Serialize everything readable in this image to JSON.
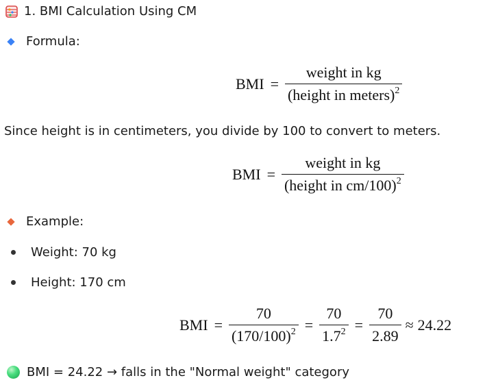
{
  "heading": {
    "icon": "abacus-icon",
    "text": "1. BMI Calculation Using CM"
  },
  "formula_section": {
    "icon": "blue-diamond-icon",
    "icon_color": "#3b82f6",
    "label": "Formula:"
  },
  "formula_1": {
    "lhs": "BMI",
    "eq": "=",
    "numerator": "weight in kg",
    "denominator": "(height in meters)",
    "exponent": "2"
  },
  "explanation": "Since height is in centimeters, you divide by 100 to convert to meters.",
  "formula_2": {
    "lhs": "BMI",
    "eq": "=",
    "numerator": "weight in kg",
    "denominator": "(height in cm/100)",
    "exponent": "2"
  },
  "example_section": {
    "icon": "orange-diamond-icon",
    "icon_color": "#e8673c",
    "label": "Example:"
  },
  "bullets": [
    "Weight: 70 kg",
    "Height: 170 cm"
  ],
  "formula_3": {
    "lhs": "BMI",
    "eq": "=",
    "frac1_num": "70",
    "frac1_den": "(170/100)",
    "frac1_exp": "2",
    "frac2_num": "70",
    "frac2_den": "1.7",
    "frac2_exp": "2",
    "frac3_num": "70",
    "frac3_den": "2.89",
    "approx": "≈",
    "result": "24.22"
  },
  "conclusion": {
    "icon": "green-circle-icon",
    "icon_color": "#22c55e",
    "text": "BMI = 24.22 → falls in the \"Normal weight\" category"
  }
}
